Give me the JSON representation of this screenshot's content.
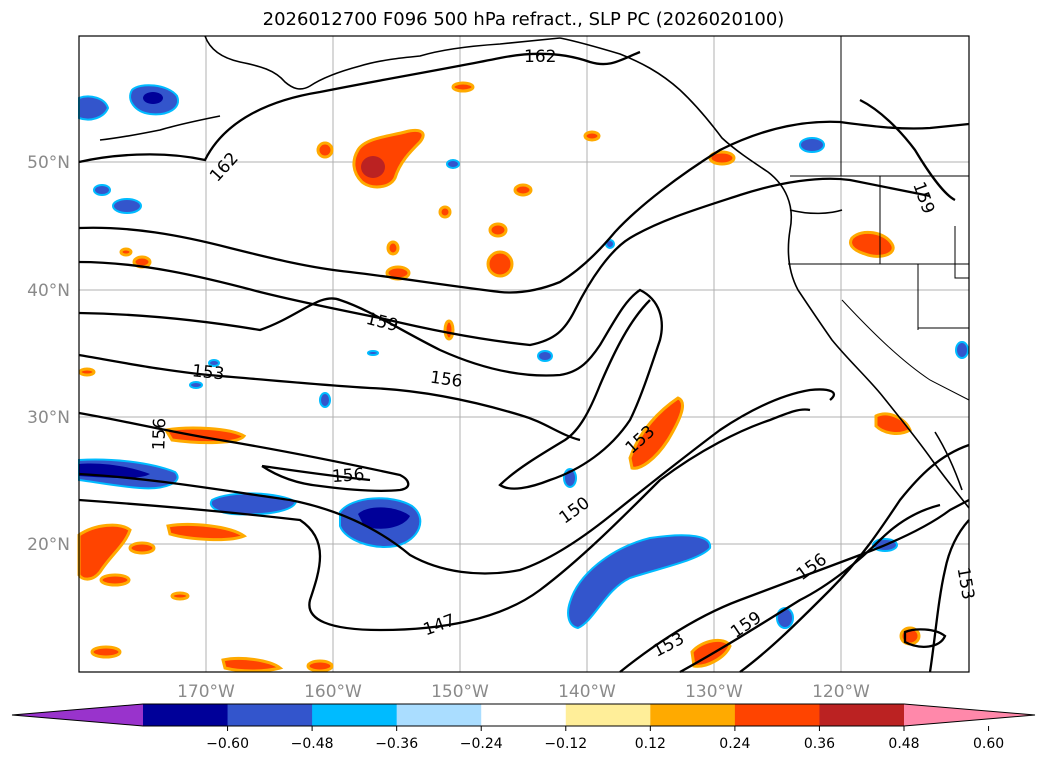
{
  "title": "2026012700 F096 500 hPa refract., SLP PC (2026020100)",
  "lat_labels": [
    "50°N",
    "40°N",
    "30°N",
    "20°N"
  ],
  "lon_labels": [
    "170°W",
    "160°W",
    "150°W",
    "140°W",
    "130°W",
    "120°W"
  ],
  "colorbar": {
    "labels": [
      "−0.60",
      "−0.48",
      "−0.36",
      "−0.24",
      "−0.12",
      "0.12",
      "0.24",
      "0.36",
      "0.48",
      "0.60"
    ],
    "colors": [
      "#9933cc",
      "#000099",
      "#3355cc",
      "#00bbff",
      "#aaddff",
      "#ffffff",
      "#ffee99",
      "#ffaa00",
      "#ff4400",
      "#bb2222",
      "#ff88aa"
    ]
  },
  "contour_labels": {
    "c162_top": "162",
    "c162_left": "162",
    "c159_mid": "159",
    "c156_mid": "156",
    "c153_left": "153",
    "c156_vert": "156",
    "c156_low": "156",
    "c153_diag": "153",
    "c150": "150",
    "c147": "147",
    "c153_low": "153",
    "c159_low": "159",
    "c156_right": "156",
    "c153_right": "153",
    "c159_top": "159"
  }
}
